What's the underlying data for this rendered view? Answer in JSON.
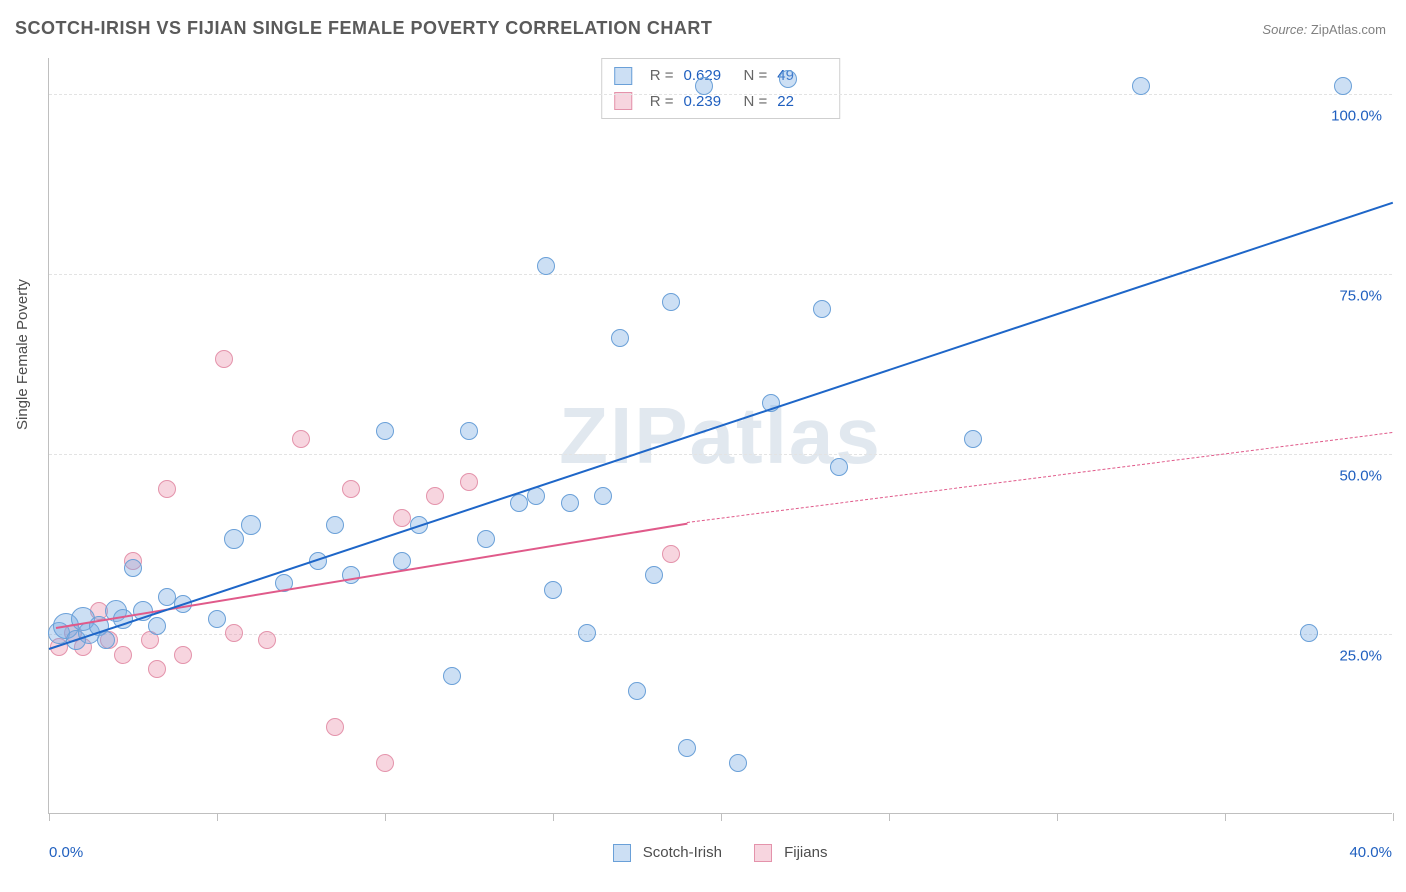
{
  "title": "SCOTCH-IRISH VS FIJIAN SINGLE FEMALE POVERTY CORRELATION CHART",
  "source_label": "Source:",
  "source_value": "ZipAtlas.com",
  "y_axis_label": "Single Female Poverty",
  "watermark": "ZIPatlas",
  "chart": {
    "type": "scatter",
    "x_min": 0.0,
    "x_max": 40.0,
    "y_min": 0.0,
    "y_max": 105.0,
    "y_ticks": [
      25.0,
      50.0,
      75.0,
      100.0
    ],
    "y_tick_labels": [
      "25.0%",
      "50.0%",
      "75.0%",
      "100.0%"
    ],
    "x_minor_ticks": [
      0.0,
      5.0,
      10.0,
      15.0,
      20.0,
      25.0,
      30.0,
      35.0,
      40.0
    ],
    "x_tick_labels": {
      "min": "0.0%",
      "max": "40.0%"
    },
    "grid_color": "#e3e3e3",
    "axis_color": "#bfbfbf",
    "tick_label_color": "#1f5fbf",
    "background": "#ffffff",
    "series": {
      "a": {
        "name": "Scotch-Irish",
        "fill": "rgba(120,170,225,0.38)",
        "stroke": "#6aa0d8",
        "line_color": "#1e66c8",
        "line_width": 2.5,
        "r": 0.629,
        "n": 49,
        "trend": {
          "x1": 0.0,
          "y1": 23.0,
          "x2": 40.0,
          "y2": 85.0,
          "dash": false
        },
        "points": [
          {
            "x": 0.3,
            "y": 25,
            "r": 10
          },
          {
            "x": 0.5,
            "y": 26,
            "r": 12
          },
          {
            "x": 0.8,
            "y": 24,
            "r": 9
          },
          {
            "x": 1.0,
            "y": 27,
            "r": 11
          },
          {
            "x": 1.2,
            "y": 25,
            "r": 10
          },
          {
            "x": 1.5,
            "y": 26,
            "r": 9
          },
          {
            "x": 1.7,
            "y": 24,
            "r": 8
          },
          {
            "x": 2.0,
            "y": 28,
            "r": 10
          },
          {
            "x": 2.2,
            "y": 27,
            "r": 9
          },
          {
            "x": 2.8,
            "y": 28,
            "r": 9
          },
          {
            "x": 3.2,
            "y": 26,
            "r": 8
          },
          {
            "x": 3.5,
            "y": 30,
            "r": 8
          },
          {
            "x": 2.5,
            "y": 34,
            "r": 8
          },
          {
            "x": 4.0,
            "y": 29,
            "r": 8
          },
          {
            "x": 5.0,
            "y": 27,
            "r": 8
          },
          {
            "x": 5.5,
            "y": 38,
            "r": 9
          },
          {
            "x": 6.0,
            "y": 40,
            "r": 9
          },
          {
            "x": 7.0,
            "y": 32,
            "r": 8
          },
          {
            "x": 8.0,
            "y": 35,
            "r": 8
          },
          {
            "x": 8.5,
            "y": 40,
            "r": 8
          },
          {
            "x": 9.0,
            "y": 33,
            "r": 8
          },
          {
            "x": 10.0,
            "y": 53,
            "r": 8
          },
          {
            "x": 10.5,
            "y": 35,
            "r": 8
          },
          {
            "x": 11.0,
            "y": 40,
            "r": 8
          },
          {
            "x": 12.5,
            "y": 53,
            "r": 8
          },
          {
            "x": 12.0,
            "y": 19,
            "r": 8
          },
          {
            "x": 13.0,
            "y": 38,
            "r": 8
          },
          {
            "x": 14.0,
            "y": 43,
            "r": 8
          },
          {
            "x": 14.5,
            "y": 44,
            "r": 8
          },
          {
            "x": 14.8,
            "y": 76,
            "r": 8
          },
          {
            "x": 15.0,
            "y": 31,
            "r": 8
          },
          {
            "x": 15.5,
            "y": 43,
            "r": 8
          },
          {
            "x": 16.0,
            "y": 25,
            "r": 8
          },
          {
            "x": 16.5,
            "y": 44,
            "r": 8
          },
          {
            "x": 17.0,
            "y": 66,
            "r": 8
          },
          {
            "x": 17.5,
            "y": 17,
            "r": 8
          },
          {
            "x": 18.0,
            "y": 33,
            "r": 8
          },
          {
            "x": 18.5,
            "y": 71,
            "r": 8
          },
          {
            "x": 19.0,
            "y": 9,
            "r": 8
          },
          {
            "x": 19.5,
            "y": 101,
            "r": 8
          },
          {
            "x": 20.5,
            "y": 7,
            "r": 8
          },
          {
            "x": 21.5,
            "y": 57,
            "r": 8
          },
          {
            "x": 22.0,
            "y": 102,
            "r": 8
          },
          {
            "x": 23.0,
            "y": 70,
            "r": 8
          },
          {
            "x": 23.5,
            "y": 48,
            "r": 8
          },
          {
            "x": 27.5,
            "y": 52,
            "r": 8
          },
          {
            "x": 32.5,
            "y": 101,
            "r": 8
          },
          {
            "x": 37.5,
            "y": 25,
            "r": 8
          },
          {
            "x": 38.5,
            "y": 101,
            "r": 8
          }
        ]
      },
      "b": {
        "name": "Fijians",
        "fill": "rgba(235,145,170,0.38)",
        "stroke": "#e493ab",
        "line_color": "#e05a8a",
        "line_width": 2.5,
        "r": 0.239,
        "n": 22,
        "trend_solid": {
          "x1": 0.2,
          "y1": 26.0,
          "x2": 19.0,
          "y2": 40.5
        },
        "trend_dash": {
          "x1": 19.0,
          "y1": 40.5,
          "x2": 40.0,
          "y2": 53.0
        },
        "points": [
          {
            "x": 0.3,
            "y": 23,
            "r": 8
          },
          {
            "x": 0.7,
            "y": 25,
            "r": 8
          },
          {
            "x": 1.0,
            "y": 23,
            "r": 8
          },
          {
            "x": 1.5,
            "y": 28,
            "r": 8
          },
          {
            "x": 1.8,
            "y": 24,
            "r": 8
          },
          {
            "x": 2.2,
            "y": 22,
            "r": 8
          },
          {
            "x": 2.5,
            "y": 35,
            "r": 8
          },
          {
            "x": 3.0,
            "y": 24,
            "r": 8
          },
          {
            "x": 3.2,
            "y": 20,
            "r": 8
          },
          {
            "x": 3.5,
            "y": 45,
            "r": 8
          },
          {
            "x": 4.0,
            "y": 22,
            "r": 8
          },
          {
            "x": 5.5,
            "y": 25,
            "r": 8
          },
          {
            "x": 5.2,
            "y": 63,
            "r": 8
          },
          {
            "x": 6.5,
            "y": 24,
            "r": 8
          },
          {
            "x": 7.5,
            "y": 52,
            "r": 8
          },
          {
            "x": 8.5,
            "y": 12,
            "r": 8
          },
          {
            "x": 9.0,
            "y": 45,
            "r": 8
          },
          {
            "x": 10.0,
            "y": 7,
            "r": 8
          },
          {
            "x": 10.5,
            "y": 41,
            "r": 8
          },
          {
            "x": 11.5,
            "y": 44,
            "r": 8
          },
          {
            "x": 12.5,
            "y": 46,
            "r": 8
          },
          {
            "x": 18.5,
            "y": 36,
            "r": 8
          }
        ]
      }
    }
  },
  "top_legend": {
    "r_label": "R =",
    "n_label": "N ="
  },
  "bottom_legend": {
    "a": "Scotch-Irish",
    "b": "Fijians"
  }
}
